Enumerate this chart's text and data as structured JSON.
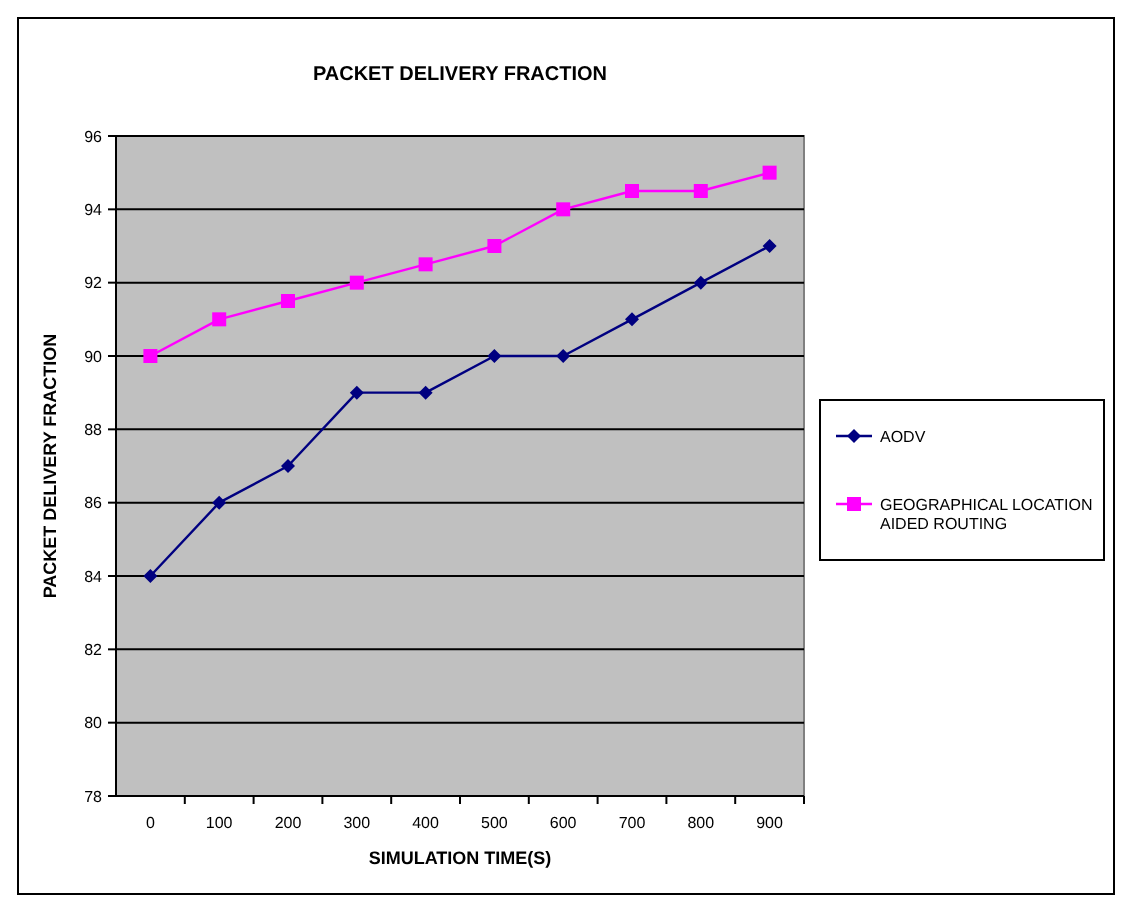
{
  "chart_data": {
    "type": "line",
    "title": "PACKET DELIVERY FRACTION",
    "xlabel": "SIMULATION TIME(S)",
    "ylabel": "PACKET DELIVERY FRACTION",
    "categories": [
      "0",
      "100",
      "200",
      "300",
      "400",
      "500",
      "600",
      "700",
      "800",
      "900"
    ],
    "series": [
      {
        "name": "AODV",
        "color": "#000080",
        "marker": "diamond",
        "values": [
          84,
          86,
          87,
          89,
          89,
          90,
          90,
          91,
          92,
          93
        ]
      },
      {
        "name": "GEOGRAPHICAL LOCATION AIDED ROUTING",
        "color": "#ff00ff",
        "marker": "square",
        "values": [
          90,
          91,
          91.5,
          92,
          92.5,
          93,
          94,
          94.5,
          94.5,
          95
        ]
      }
    ],
    "ylim": [
      78,
      96
    ],
    "yticks": [
      78,
      80,
      82,
      84,
      86,
      88,
      90,
      92,
      94,
      96
    ],
    "grid": "y",
    "legend": "right",
    "line_style": "solid"
  }
}
